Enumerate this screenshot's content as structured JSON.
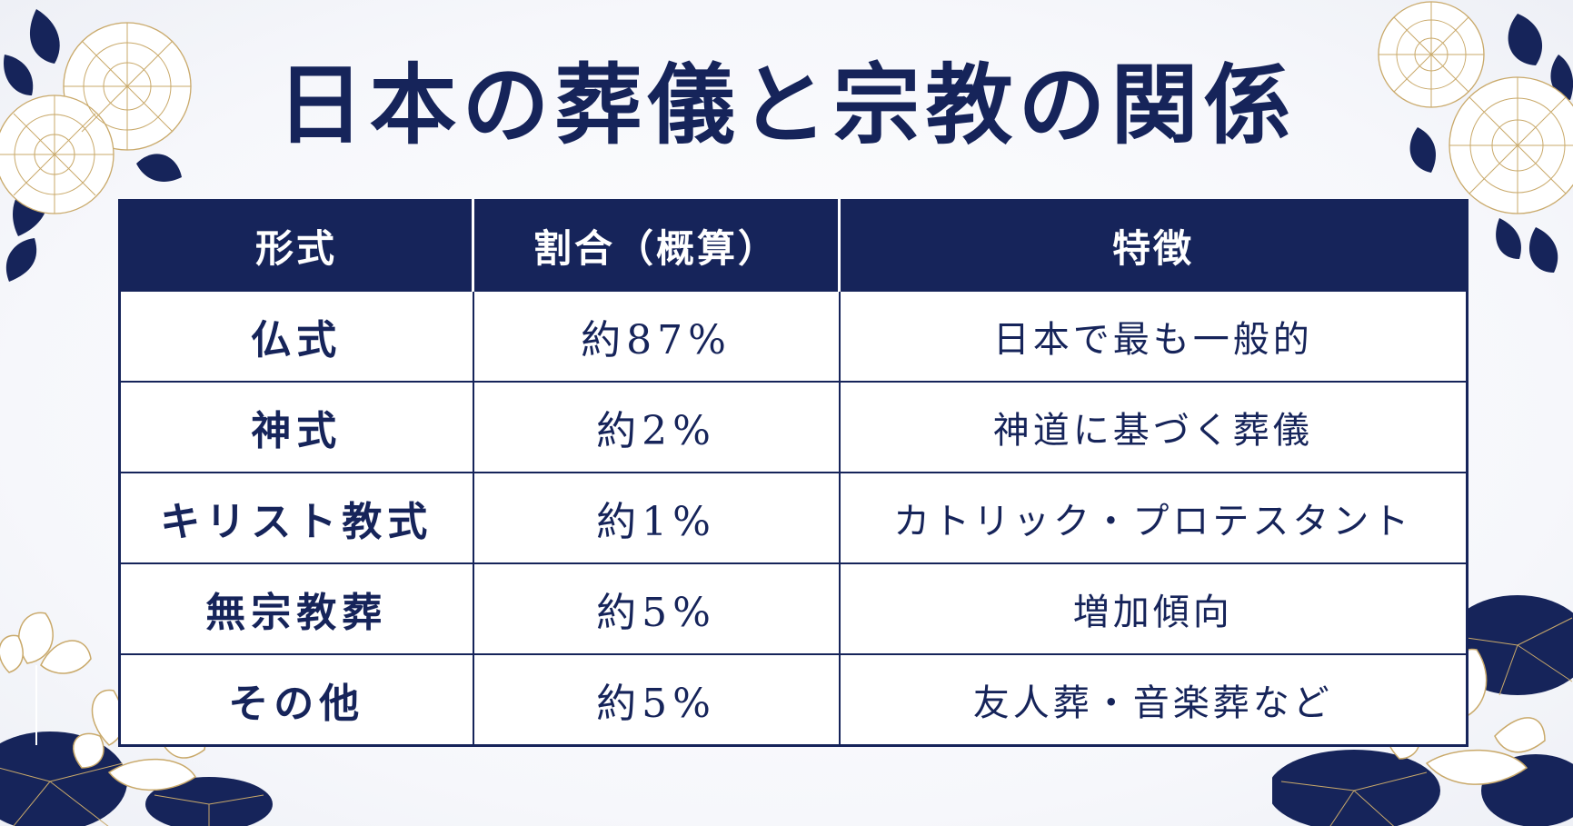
{
  "title": "日本の葬儀と宗教の関係",
  "table": {
    "headers": [
      "形式",
      "割合（概算）",
      "特徴"
    ],
    "rows": [
      {
        "form": "仏式",
        "ratio": "約87%",
        "feature": "日本で最も一般的"
      },
      {
        "form": "神式",
        "ratio": "約2%",
        "feature": "神道に基づく葬儀"
      },
      {
        "form": "キリスト教式",
        "ratio": "約1%",
        "feature": "カトリック・プロテスタント"
      },
      {
        "form": "無宗教葬",
        "ratio": "約5%",
        "feature": "増加傾向"
      },
      {
        "form": "その他",
        "ratio": "約5%",
        "feature": "友人葬・音楽葬など"
      }
    ]
  },
  "colors": {
    "navy": "#16245a",
    "white": "#ffffff",
    "petal_line": "#c9a96a"
  },
  "decorations": [
    "chrysanthemum-flower-icon",
    "lotus-flower-icon",
    "leaf-icon",
    "lotus-leaf-icon"
  ]
}
